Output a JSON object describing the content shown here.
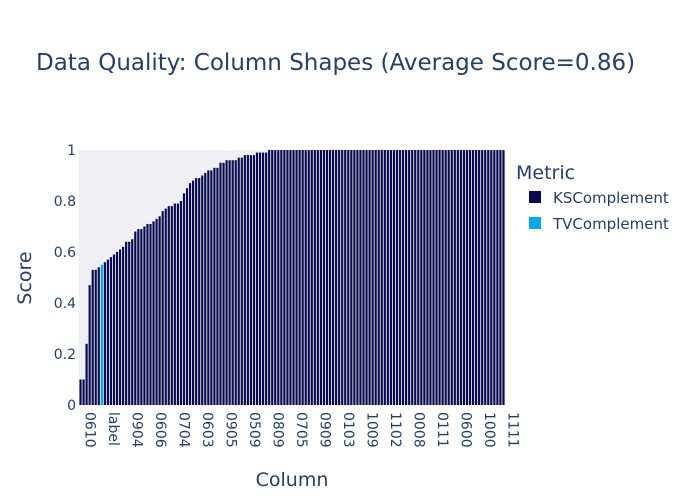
{
  "chart_data": {
    "type": "bar",
    "title": "Data Quality: Column Shapes (Average Score=0.86)",
    "xlabel": "Column",
    "ylabel": "Score",
    "ylim": [
      0,
      1
    ],
    "yticks": [
      "0",
      "0.2",
      "0.4",
      "0.6",
      "0.8",
      "1"
    ],
    "legend_title": "Metric",
    "legend_position": "right",
    "x_tick_labels": [
      "0610",
      "label",
      "0904",
      "0606",
      "0704",
      "0603",
      "0905",
      "0509",
      "0809",
      "0705",
      "0909",
      "0103",
      "1009",
      "1102",
      "0008",
      "0111",
      "0600",
      "1000",
      "1111"
    ],
    "series": [
      {
        "name": "KSComplement",
        "color": "#0a0a4e",
        "highlight_color": "#0a0a4e",
        "values": [
          0.1,
          0.1,
          0.24,
          0.47,
          0.53,
          0.53,
          0.54,
          0.55,
          0.56,
          0.57,
          0.58,
          0.59,
          0.6,
          0.61,
          0.62,
          0.64,
          0.64,
          0.65,
          0.68,
          0.69,
          0.69,
          0.7,
          0.71,
          0.71,
          0.72,
          0.73,
          0.74,
          0.76,
          0.77,
          0.78,
          0.78,
          0.79,
          0.79,
          0.8,
          0.83,
          0.85,
          0.87,
          0.88,
          0.89,
          0.89,
          0.9,
          0.91,
          0.92,
          0.92,
          0.93,
          0.93,
          0.95,
          0.95,
          0.96,
          0.96,
          0.96,
          0.96,
          0.97,
          0.97,
          0.98,
          0.98,
          0.98,
          0.98,
          0.99,
          0.99,
          0.99,
          0.99,
          1.0,
          1.0,
          1.0,
          1.0,
          1.0,
          1.0,
          1.0,
          1.0,
          1.0,
          1.0,
          1.0,
          1.0,
          1.0,
          1.0,
          1.0,
          1.0,
          1.0,
          1.0,
          1.0,
          1.0,
          1.0,
          1.0,
          1.0,
          1.0,
          1.0,
          1.0,
          1.0,
          1.0,
          1.0,
          1.0,
          1.0,
          1.0,
          1.0,
          1.0,
          1.0,
          1.0,
          1.0,
          1.0,
          1.0,
          1.0,
          1.0,
          1.0,
          1.0,
          1.0,
          1.0,
          1.0,
          1.0,
          1.0,
          1.0,
          1.0,
          1.0,
          1.0,
          1.0,
          1.0,
          1.0,
          1.0,
          1.0,
          1.0,
          1.0,
          1.0,
          1.0,
          1.0,
          1.0,
          1.0,
          1.0,
          1.0,
          1.0,
          1.0,
          1.0,
          1.0,
          1.0,
          1.0,
          1.0,
          1.0,
          1.0,
          1.0,
          1.0,
          1.0
        ]
      },
      {
        "name": "TVComplement",
        "color": "#03a9e6",
        "highlight_index": 7,
        "value": 0.55
      }
    ]
  }
}
